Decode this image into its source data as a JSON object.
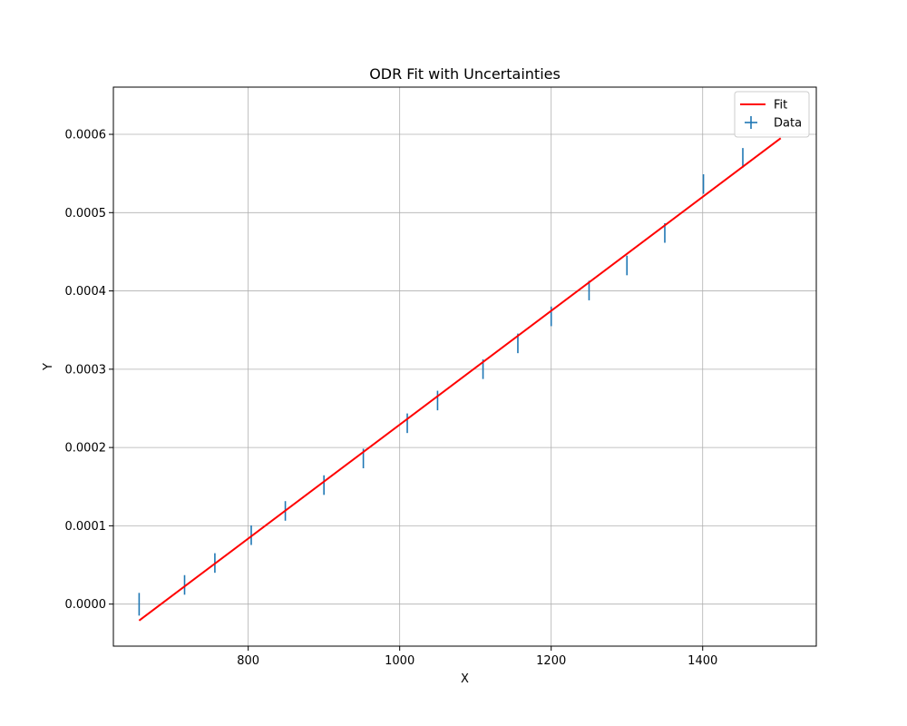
{
  "chart_data": {
    "type": "scatter",
    "title": "ODR Fit with Uncertainties",
    "xlabel": "X",
    "ylabel": "Y",
    "xlim": [
      622,
      1550
    ],
    "ylim": [
      -5.37e-05,
      0.0006603
    ],
    "grid": true,
    "legend_position": "top-right",
    "x_ticks": [
      800,
      1000,
      1200,
      1400
    ],
    "x_tick_labels": [
      "800",
      "1000",
      "1200",
      "1400"
    ],
    "y_ticks": [
      0,
      0.0001,
      0.0002,
      0.0003,
      0.0004,
      0.0005,
      0.0006
    ],
    "y_tick_labels": [
      "0.0000",
      "0.0001",
      "0.0002",
      "0.0003",
      "0.0004",
      "0.0005",
      "0.0006"
    ],
    "series": [
      {
        "name": "Data",
        "kind": "errorbar",
        "color": "#1f77b4",
        "points": [
          {
            "x": 656,
            "y": -2e-07,
            "yerr": 1.45e-05
          },
          {
            "x": 716,
            "y": 2.45e-05,
            "yerr": 1.25e-05
          },
          {
            "x": 756,
            "y": 5.25e-05,
            "yerr": 1.25e-05
          },
          {
            "x": 804,
            "y": 8.8e-05,
            "yerr": 1.25e-05
          },
          {
            "x": 849,
            "y": 0.000119,
            "yerr": 1.25e-05
          },
          {
            "x": 900,
            "y": 0.000152,
            "yerr": 1.25e-05
          },
          {
            "x": 952,
            "y": 0.000186,
            "yerr": 1.25e-05
          },
          {
            "x": 1010,
            "y": 0.000231,
            "yerr": 1.25e-05
          },
          {
            "x": 1050,
            "y": 0.00026,
            "yerr": 1.25e-05
          },
          {
            "x": 1110,
            "y": 0.0003,
            "yerr": 1.25e-05
          },
          {
            "x": 1156,
            "y": 0.000333,
            "yerr": 1.25e-05
          },
          {
            "x": 1200,
            "y": 0.0003675,
            "yerr": 1.25e-05
          },
          {
            "x": 1250,
            "y": 0.0004005,
            "yerr": 1.25e-05
          },
          {
            "x": 1300,
            "y": 0.0004325,
            "yerr": 1.25e-05
          },
          {
            "x": 1350,
            "y": 0.000474,
            "yerr": 1.25e-05
          },
          {
            "x": 1401,
            "y": 0.0005365,
            "yerr": 1.25e-05
          },
          {
            "x": 1453,
            "y": 0.00057,
            "yerr": 1.25e-05
          }
        ]
      },
      {
        "name": "Fit",
        "kind": "line",
        "color": "#ff0000",
        "x": [
          656,
          1503
        ],
        "y": [
          -2.1e-05,
          0.000595
        ]
      }
    ]
  }
}
